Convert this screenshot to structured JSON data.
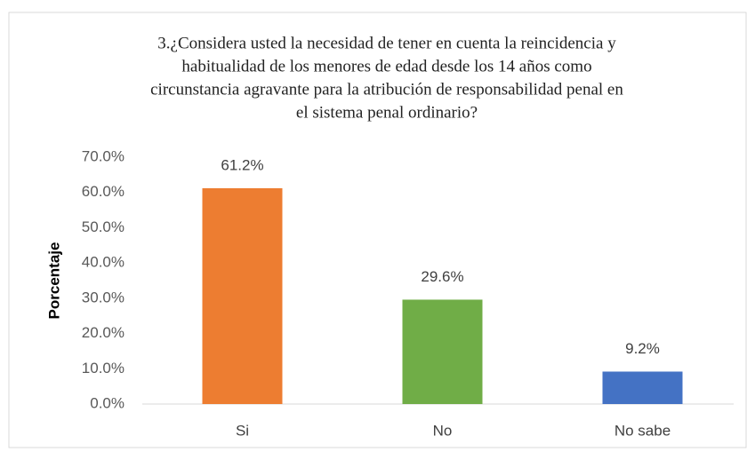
{
  "chart_data": {
    "type": "bar",
    "title": [
      "3.¿Considera usted la necesidad de tener en cuenta la reincidencia y",
      "habitualidad de los menores de edad desde los 14 años como",
      "circunstancia agravante para la atribución de responsabilidad penal en",
      "el sistema penal ordinario?"
    ],
    "y_label": "Porcentaje",
    "categories": [
      "Si",
      "No",
      "No sabe"
    ],
    "values": [
      61.2,
      29.6,
      9.2
    ],
    "value_labels": [
      "61.2%",
      "29.6%",
      "9.2%"
    ],
    "colors": [
      "#ed7d31",
      "#70ad47",
      "#4472c4"
    ],
    "ylim": [
      0,
      70
    ],
    "yticks": [
      {
        "value": 0,
        "label": "0.0%"
      },
      {
        "value": 10,
        "label": "10.0%"
      },
      {
        "value": 20,
        "label": "20.0%"
      },
      {
        "value": 30,
        "label": "30.0%"
      },
      {
        "value": 40,
        "label": "40.0%"
      },
      {
        "value": 50,
        "label": "50.0%"
      },
      {
        "value": 60,
        "label": "60.0%"
      },
      {
        "value": 70,
        "label": "70.0%"
      }
    ],
    "grid": false
  }
}
